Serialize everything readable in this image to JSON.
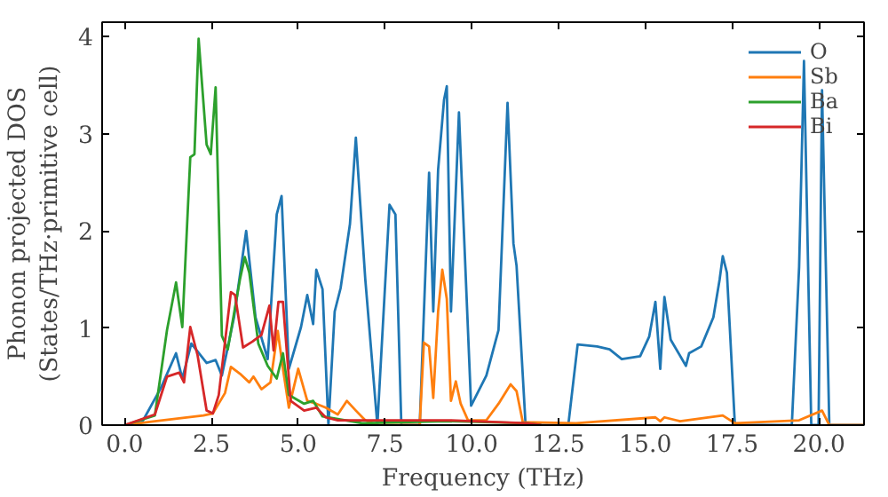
{
  "chart_data": {
    "type": "line",
    "xlabel": "Frequency (THz)",
    "ylabel": "Phonon projected DOS\n(States/THz·primitive cell)",
    "xlim": [
      -0.65,
      21.3
    ],
    "ylim": [
      0,
      4.15
    ],
    "xticks": [
      {
        "value": 0,
        "label": "0.0"
      },
      {
        "value": 2.5,
        "label": "2.5"
      },
      {
        "value": 5,
        "label": "5.0"
      },
      {
        "value": 7.5,
        "label": "7.5"
      },
      {
        "value": 10,
        "label": "10.0"
      },
      {
        "value": 12.5,
        "label": "12.5"
      },
      {
        "value": 15,
        "label": "15.0"
      },
      {
        "value": 17.5,
        "label": "17.5"
      },
      {
        "value": 20,
        "label": "20.0"
      }
    ],
    "yticks": [
      0,
      1,
      2,
      3,
      4
    ],
    "grid": false,
    "legend": "top right",
    "line_style": "solid",
    "marker": "none",
    "series": [
      {
        "name": "O",
        "color": "#1f77b4",
        "x": [
          0,
          0.5,
          1.04,
          1.48,
          1.66,
          1.92,
          2.36,
          2.62,
          2.8,
          3.15,
          3.5,
          3.77,
          4.12,
          4.38,
          4.52,
          4.73,
          5.08,
          5.26,
          5.43,
          5.52,
          5.7,
          5.87,
          6.05,
          6.22,
          6.49,
          6.66,
          6.93,
          7.28,
          7.63,
          7.8,
          7.97,
          8.5,
          8.77,
          8.89,
          9.03,
          9.2,
          9.28,
          9.4,
          9.63,
          9.98,
          10.42,
          10.77,
          11.03,
          11.2,
          11.29,
          11.55,
          12.78,
          13.05,
          13.61,
          13.97,
          14.32,
          14.85,
          15.11,
          15.29,
          15.43,
          15.55,
          15.73,
          16.17,
          16.26,
          16.61,
          16.96,
          17.14,
          17.23,
          17.35,
          17.58,
          19.22,
          19.43,
          19.57,
          19.78,
          19.99,
          20.09,
          20.3,
          21.3
        ],
        "values": [
          0,
          0.03,
          0.38,
          0.74,
          0.48,
          0.84,
          0.64,
          0.67,
          0.51,
          1.11,
          2.0,
          1.11,
          0.68,
          2.17,
          2.36,
          0.58,
          1.01,
          1.34,
          1.04,
          1.6,
          1.4,
          0,
          1.17,
          1.41,
          2.07,
          2.96,
          1.51,
          0,
          2.27,
          2.17,
          0,
          0,
          2.6,
          1.17,
          2.63,
          3.35,
          3.49,
          1.17,
          3.22,
          0.2,
          0.51,
          0.98,
          3.32,
          1.87,
          1.64,
          0,
          0,
          0.83,
          0.81,
          0.78,
          0.68,
          0.71,
          0.91,
          1.27,
          0.58,
          1.32,
          0.88,
          0.61,
          0.74,
          0.81,
          1.11,
          1.5,
          1.74,
          1.57,
          0,
          0,
          1.63,
          3.75,
          0,
          0,
          3.45,
          0,
          0
        ]
      },
      {
        "name": "Sb",
        "color": "#ff7f0e",
        "x": [
          0,
          0.87,
          2.27,
          2.54,
          2.89,
          3.06,
          3.32,
          3.59,
          3.71,
          3.94,
          4.2,
          4.41,
          4.56,
          4.73,
          5.0,
          5.26,
          5.52,
          5.79,
          6.14,
          6.4,
          6.66,
          6.93,
          7.28,
          8.5,
          8.62,
          8.77,
          8.89,
          9.03,
          9.15,
          9.28,
          9.4,
          9.54,
          9.68,
          9.89,
          10.42,
          10.77,
          11.12,
          11.29,
          11.47,
          13.0,
          15.29,
          15.43,
          15.55,
          16.0,
          17.23,
          17.58,
          19.43,
          20.09,
          20.3,
          21.3
        ],
        "values": [
          0,
          0.04,
          0.1,
          0.12,
          0.33,
          0.6,
          0.53,
          0.44,
          0.5,
          0.37,
          0.44,
          0.97,
          0.58,
          0.18,
          0.58,
          0.25,
          0.22,
          0.18,
          0.11,
          0.25,
          0.15,
          0.05,
          0,
          0,
          0.85,
          0.81,
          0.28,
          1.17,
          1.6,
          1.3,
          0.25,
          0.45,
          0.22,
          0.05,
          0.05,
          0.22,
          0.42,
          0.35,
          0.03,
          0.02,
          0.08,
          0.04,
          0.08,
          0.04,
          0.1,
          0.02,
          0.05,
          0.15,
          0,
          0
        ]
      },
      {
        "name": "Ba",
        "color": "#2ca02c",
        "x": [
          0,
          0.87,
          1.22,
          1.48,
          1.66,
          1.89,
          2.01,
          2.13,
          2.36,
          2.48,
          2.62,
          2.8,
          2.97,
          3.32,
          3.46,
          3.59,
          3.85,
          4.12,
          4.38,
          4.56,
          4.73,
          5.17,
          5.43,
          5.7,
          6.84,
          9.3,
          11.6,
          12.0
        ],
        "values": [
          0,
          0.1,
          0.98,
          1.47,
          1.01,
          2.76,
          2.79,
          3.98,
          2.89,
          2.79,
          3.48,
          0.92,
          0.78,
          1.5,
          1.73,
          1.57,
          0.84,
          0.61,
          0.48,
          0.74,
          0.31,
          0.22,
          0.25,
          0.09,
          0.02,
          0.04,
          0.02,
          0
        ]
      },
      {
        "name": "Bi",
        "color": "#d62728",
        "x": [
          0,
          0.87,
          1.22,
          1.57,
          1.71,
          1.89,
          2.1,
          2.36,
          2.54,
          2.71,
          3.06,
          3.18,
          3.41,
          3.68,
          3.94,
          4.17,
          4.29,
          4.43,
          4.56,
          4.78,
          5.17,
          5.52,
          5.79,
          6.14,
          6.84,
          9.3,
          11.6,
          12.0
        ],
        "values": [
          0,
          0.11,
          0.5,
          0.54,
          0.44,
          1.01,
          0.72,
          0.15,
          0.12,
          0.31,
          1.37,
          1.34,
          0.8,
          0.86,
          0.93,
          1.23,
          0.77,
          1.27,
          1.27,
          0.25,
          0.15,
          0.18,
          0.08,
          0.05,
          0.05,
          0.05,
          0.02,
          0
        ]
      }
    ]
  }
}
